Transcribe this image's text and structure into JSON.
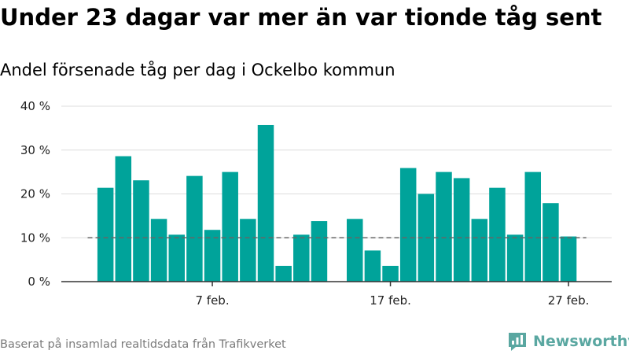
{
  "title": "Under 23 dagar var mer än var tionde tåg sent",
  "subtitle": "Andel försenade tåg per dag i Ockelbo kommun",
  "source": "Baserat på insamlad realtidsdata från Trafikverket",
  "brand": {
    "name": "Newsworthy",
    "logo_icon": "newsworthy-logo-icon",
    "color": "#5aa7a1"
  },
  "chart_data": {
    "type": "bar",
    "ylim": [
      0,
      40
    ],
    "yticks": [
      {
        "value": 0,
        "label": "0 %"
      },
      {
        "value": 10,
        "label": "10 %"
      },
      {
        "value": 20,
        "label": "20 %"
      },
      {
        "value": 30,
        "label": "30 %"
      },
      {
        "value": 40,
        "label": "40 %"
      }
    ],
    "xticks": [
      {
        "day": 7,
        "label": "7 feb."
      },
      {
        "day": 17,
        "label": "17 feb."
      },
      {
        "day": 27,
        "label": "27 feb."
      }
    ],
    "bars": [
      {
        "day": 1,
        "value": 21.4
      },
      {
        "day": 2,
        "value": 28.6
      },
      {
        "day": 3,
        "value": 23.1
      },
      {
        "day": 4,
        "value": 14.3
      },
      {
        "day": 5,
        "value": 10.7
      },
      {
        "day": 6,
        "value": 24.1
      },
      {
        "day": 7,
        "value": 11.8
      },
      {
        "day": 8,
        "value": 25.0
      },
      {
        "day": 9,
        "value": 14.3
      },
      {
        "day": 10,
        "value": 35.7
      },
      {
        "day": 11,
        "value": 3.6
      },
      {
        "day": 12,
        "value": 10.7
      },
      {
        "day": 13,
        "value": 13.8
      },
      {
        "day": 15,
        "value": 14.3
      },
      {
        "day": 16,
        "value": 7.1
      },
      {
        "day": 17,
        "value": 3.6
      },
      {
        "day": 18,
        "value": 25.9
      },
      {
        "day": 19,
        "value": 20.0
      },
      {
        "day": 20,
        "value": 25.0
      },
      {
        "day": 21,
        "value": 23.6
      },
      {
        "day": 22,
        "value": 14.3
      },
      {
        "day": 23,
        "value": 21.4
      },
      {
        "day": 24,
        "value": 10.7
      },
      {
        "day": 25,
        "value": 25.0
      },
      {
        "day": 26,
        "value": 17.9
      },
      {
        "day": 27,
        "value": 10.3
      }
    ],
    "reference_line": {
      "value": 10,
      "from_day": 0,
      "to_day": 28,
      "style": "dashed"
    },
    "grid": true,
    "colors": {
      "bar": "#00a39a",
      "grid": "#dddddd",
      "axis": "#333333",
      "reference": "#666666"
    }
  }
}
